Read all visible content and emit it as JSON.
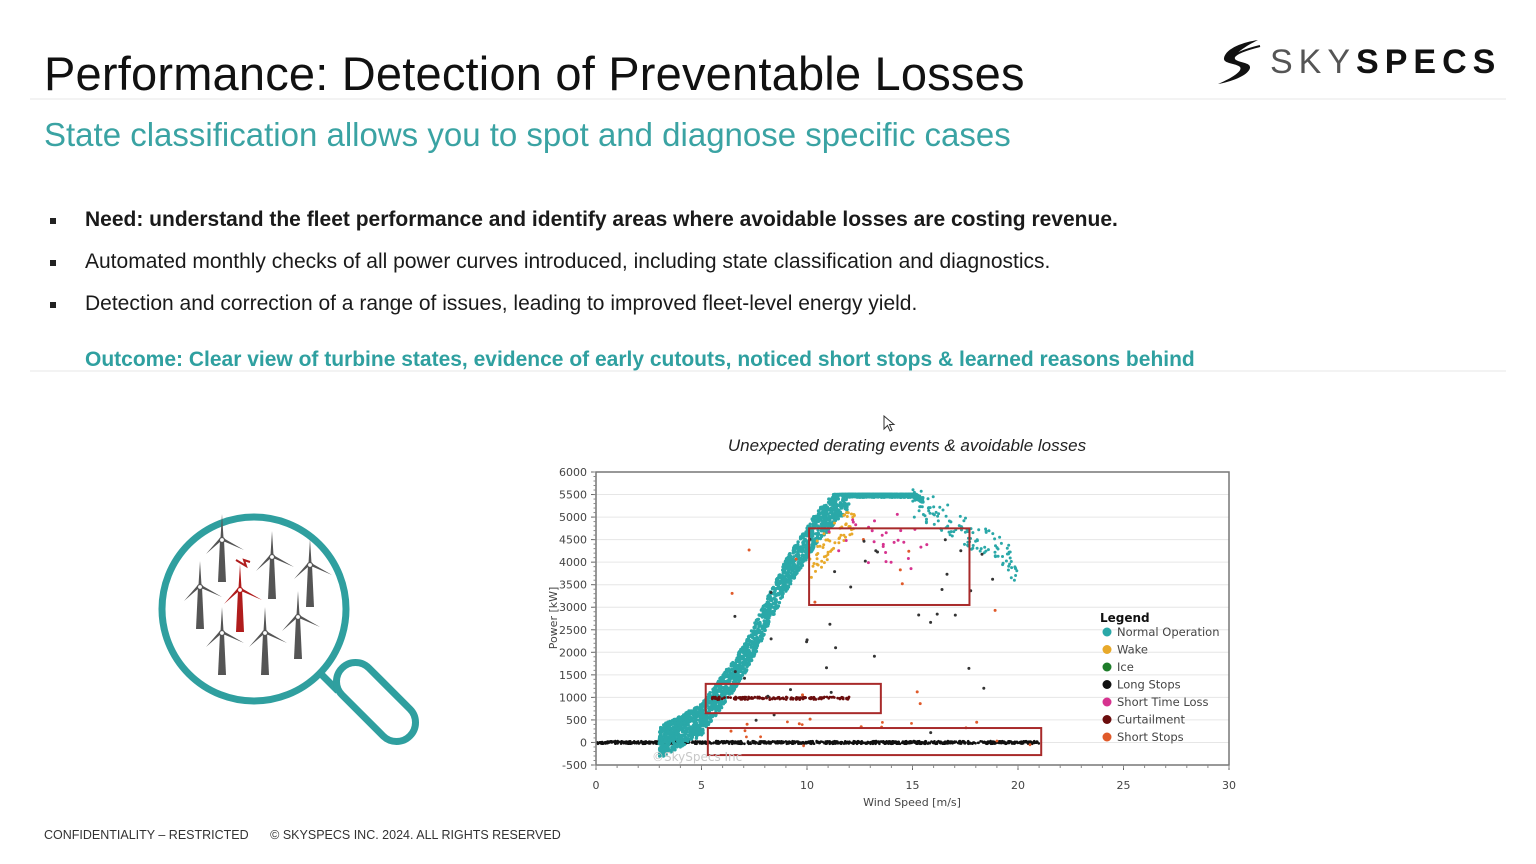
{
  "slide": {
    "title": "Performance: Detection of Preventable Losses",
    "subtitle": "State classification allows you to spot and diagnose specific cases",
    "logo": {
      "light_part": "SKY",
      "bold_part": "SPECS"
    },
    "bullets": [
      {
        "text": "Need: understand the fleet performance and identify areas where avoidable losses are costing revenue.",
        "bold": true
      },
      {
        "text": "Automated monthly checks of all power curves introduced, including state classification and diagnostics.",
        "bold": false
      },
      {
        "text": "Detection and correction of a range of issues, leading to improved fleet-level energy yield.",
        "bold": false
      }
    ],
    "outcome": "Outcome: Clear view of turbine states, evidence of early cutouts, noticed short stops & learned reasons behind",
    "footer": {
      "confidentiality": "CONFIDENTIALITY – RESTRICTED",
      "copyright": "© SKYSPECS INC. 2024. ALL RIGHTS RESERVED"
    },
    "colors": {
      "accent": "#3aa3a3",
      "highlight_box": "#a82a2a",
      "alert_turbine": "#b01c1c",
      "turbine": "#555555"
    }
  },
  "chart_data": {
    "type": "scatter",
    "title": "Unexpected derating events & avoidable losses",
    "xlabel": "Wind Speed [m/s]",
    "ylabel": "Power [kW]",
    "xlim": [
      0,
      30
    ],
    "ylim": [
      -500,
      6000
    ],
    "x_ticks": [
      0,
      5,
      10,
      15,
      20,
      25,
      30
    ],
    "y_ticks": [
      6000,
      5500,
      5000,
      4500,
      4000,
      3500,
      3000,
      2500,
      2000,
      1500,
      1000,
      500,
      0,
      -500
    ],
    "grid": true,
    "watermark": "©SkySpecs Inc",
    "legend": {
      "title": "Legend",
      "position": "right-inside",
      "entries": [
        {
          "name": "Normal Operation",
          "color": "#2aa8a8"
        },
        {
          "name": "Wake",
          "color": "#e8a92a"
        },
        {
          "name": "Ice",
          "color": "#1e7d2a"
        },
        {
          "name": "Long Stops",
          "color": "#111111"
        },
        {
          "name": "Short Time Loss",
          "color": "#d6338f"
        },
        {
          "name": "Curtailment",
          "color": "#6b0d0d"
        },
        {
          "name": "Short Stops",
          "color": "#e05a2a"
        }
      ]
    },
    "series": [
      {
        "name": "Normal Operation",
        "description": "dense power curve: ~0 kW until 3 m/s, rising to 5500 kW rated at ~12 m/s, flat until ~15 m/s, tapering to ~4000 kW at 20 m/s",
        "curve": [
          [
            3,
            0
          ],
          [
            5,
            500
          ],
          [
            7,
            1800
          ],
          [
            9,
            3700
          ],
          [
            10.5,
            4800
          ],
          [
            12,
            5500
          ],
          [
            15,
            5500
          ],
          [
            17,
            5000
          ],
          [
            19,
            4400
          ],
          [
            20,
            4000
          ]
        ]
      },
      {
        "name": "Wake",
        "description": "scattered points just below the curve between 10–12 m/s, 4300–5200 kW"
      },
      {
        "name": "Short Time Loss",
        "description": "few points 11–16 m/s, 3800–5200 kW"
      },
      {
        "name": "Curtailment",
        "description": "flat band ~1000 kW from 5.5 to 12 m/s"
      },
      {
        "name": "Long Stops",
        "description": "dense line at 0 kW from 0 to ~21 m/s plus sparse points"
      },
      {
        "name": "Short Stops",
        "description": "sparse points across 6–20 m/s at low power"
      }
    ],
    "highlight_boxes": [
      {
        "label": "derated-high-wind",
        "x": [
          10.1,
          17.7
        ],
        "y": [
          3050,
          4750
        ]
      },
      {
        "label": "curtailment-band",
        "x": [
          5.2,
          13.5
        ],
        "y": [
          650,
          1300
        ]
      },
      {
        "label": "short-stops-zero",
        "x": [
          5.3,
          21.1
        ],
        "y": [
          -280,
          320
        ]
      }
    ]
  },
  "cursor": {
    "icon": "mouse-pointer-icon"
  }
}
